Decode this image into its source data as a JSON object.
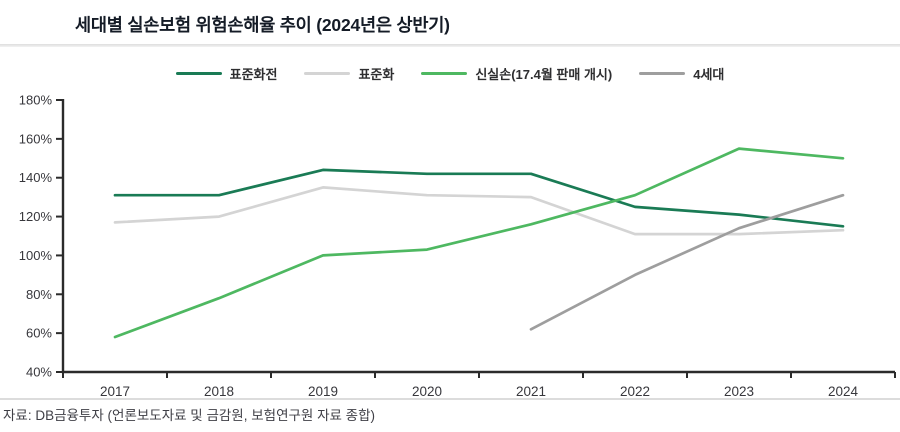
{
  "title": "세대별 실손보험 위험손해율 추이 (2024년은 상반기)",
  "footer": "자료: DB금융투자 (언론보도자료 및 금감원, 보험연구원 자료 종합)",
  "chart_data": {
    "type": "line",
    "title": "세대별 실손보험 위험손해율 추이 (2024년은 상반기)",
    "categories": [
      "2017",
      "2018",
      "2019",
      "2020",
      "2021",
      "2022",
      "2023",
      "2024"
    ],
    "series": [
      {
        "name": "표준화전",
        "color": "#1a7b55",
        "values": [
          131,
          131,
          144,
          142,
          142,
          125,
          121,
          115
        ]
      },
      {
        "name": "표준화",
        "color": "#d4d4d4",
        "values": [
          117,
          120,
          135,
          131,
          130,
          111,
          111,
          113
        ]
      },
      {
        "name": "신실손(17.4월 판매 개시)",
        "color": "#4eb861",
        "values": [
          58,
          78,
          100,
          103,
          116,
          131,
          155,
          150
        ]
      },
      {
        "name": "4세대",
        "color": "#9e9e9e",
        "values": [
          null,
          null,
          null,
          null,
          62,
          90,
          114,
          131
        ]
      }
    ],
    "xlabel": "",
    "ylabel": "",
    "ylim": [
      40,
      180
    ],
    "ytick_step": 20,
    "ytick_suffix": "%",
    "legend_position": "top",
    "grid": false,
    "axis_color": "#2b2b2b"
  }
}
